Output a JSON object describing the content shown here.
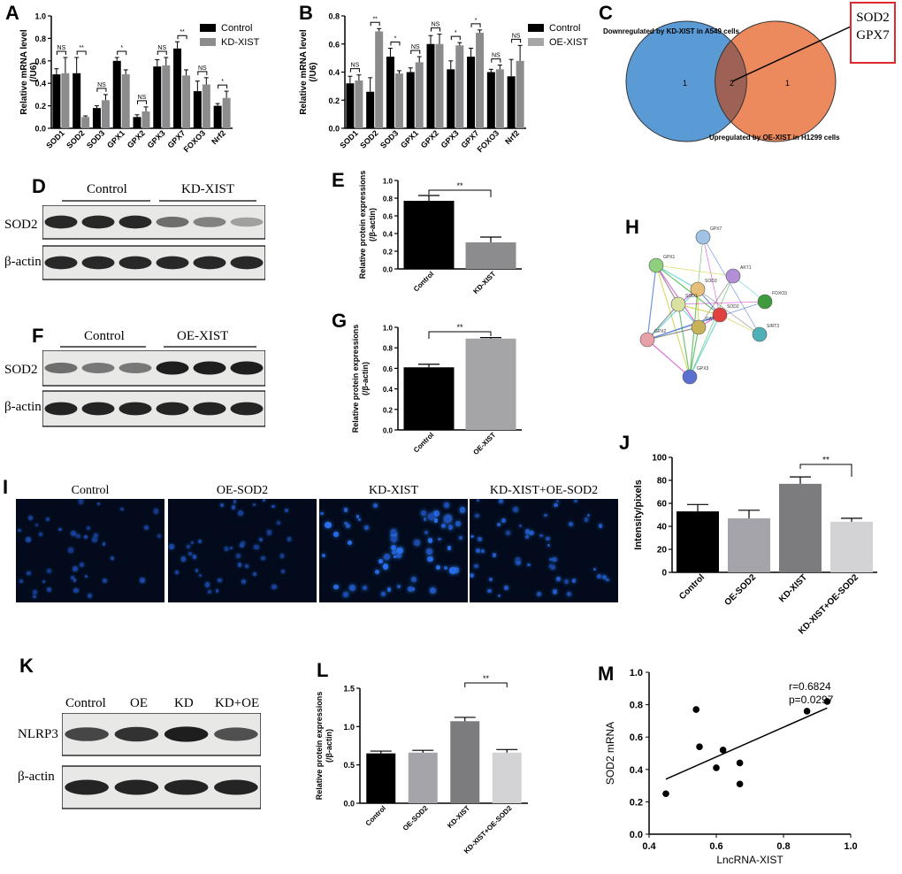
{
  "figure": {
    "panel_letters": [
      "A",
      "B",
      "C",
      "D",
      "E",
      "F",
      "G",
      "H",
      "I",
      "J",
      "K",
      "L",
      "M"
    ],
    "colors": {
      "control": "#000000",
      "kd": "#8c8c8f",
      "oe": "#a5a5a8",
      "blue_circle": "#5b9bd5",
      "orange_circle": "#ec8a5d",
      "box_red": "#e0282f"
    }
  },
  "chart_data": [
    {
      "id": "A",
      "type": "bar",
      "ylabel": "Relative mRNA level (/U6)",
      "ylim": [
        0,
        1.0
      ],
      "yticks": [
        "0.0",
        "0.2",
        "0.4",
        "0.6",
        "0.8",
        "1.0"
      ],
      "categories": [
        "SOD1",
        "SOD2",
        "SOD3",
        "GPX1",
        "GPX2",
        "GPX3",
        "GPX7",
        "FOXO3",
        "Nrf2"
      ],
      "series": [
        {
          "name": "Control",
          "values": [
            0.48,
            0.49,
            0.18,
            0.6,
            0.1,
            0.55,
            0.71,
            0.33,
            0.2
          ],
          "errors": [
            0.05,
            0.14,
            0.02,
            0.03,
            0.02,
            0.06,
            0.06,
            0.09,
            0.02
          ]
        },
        {
          "name": "KD-XIST",
          "values": [
            0.49,
            0.1,
            0.25,
            0.48,
            0.15,
            0.56,
            0.47,
            0.39,
            0.27
          ],
          "errors": [
            0.14,
            0.01,
            0.05,
            0.04,
            0.04,
            0.07,
            0.05,
            0.06,
            0.06
          ]
        }
      ],
      "significance": [
        "NS",
        "**",
        "NS",
        "*",
        "NS",
        "NS",
        "**",
        "NS",
        "*"
      ]
    },
    {
      "id": "B",
      "type": "bar",
      "ylabel": "Relative mRNA level (/U6)",
      "ylim": [
        0,
        0.8
      ],
      "yticks": [
        "0.0",
        "0.2",
        "0.4",
        "0.6",
        "0.8"
      ],
      "categories": [
        "SOD1",
        "SOD2",
        "SOD3",
        "GPX1",
        "GPX2",
        "GPX3",
        "GPX7",
        "FOXO3",
        "Nrf2"
      ],
      "series": [
        {
          "name": "Control",
          "values": [
            0.32,
            0.26,
            0.51,
            0.4,
            0.6,
            0.42,
            0.51,
            0.4,
            0.37
          ],
          "errors": [
            0.05,
            0.1,
            0.06,
            0.03,
            0.06,
            0.06,
            0.06,
            0.02,
            0.12
          ]
        },
        {
          "name": "OE-XIST",
          "values": [
            0.34,
            0.69,
            0.39,
            0.47,
            0.6,
            0.59,
            0.68,
            0.42,
            0.48
          ],
          "errors": [
            0.04,
            0.02,
            0.02,
            0.04,
            0.07,
            0.02,
            0.02,
            0.03,
            0.11
          ]
        }
      ],
      "significance": [
        "NS",
        "**",
        "*",
        "NS",
        "NS",
        "*",
        "*",
        "NS",
        "NS"
      ]
    },
    {
      "id": "E",
      "type": "bar",
      "ylabel": "Relative protein expressions (/β-actin)",
      "ylim": [
        0,
        1.0
      ],
      "yticks": [
        "0.0",
        "0.2",
        "0.4",
        "0.6",
        "0.8",
        "1.0"
      ],
      "categories": [
        "Control",
        "KD-XIST"
      ],
      "values": [
        0.77,
        0.3
      ],
      "errors": [
        0.06,
        0.06
      ],
      "significance": "**"
    },
    {
      "id": "G",
      "type": "bar",
      "ylabel": "Relative protein expressions (/β-actin)",
      "ylim": [
        0,
        1.0
      ],
      "yticks": [
        "0.0",
        "0.2",
        "0.4",
        "0.6",
        "0.8",
        "1.0"
      ],
      "categories": [
        "Control",
        "OE-XIST"
      ],
      "values": [
        0.61,
        0.89
      ],
      "errors": [
        0.03,
        0.01
      ],
      "significance": "**"
    },
    {
      "id": "J",
      "type": "bar",
      "ylabel": "Intensity/pixels",
      "ylim": [
        0,
        100
      ],
      "yticks": [
        "0",
        "20",
        "40",
        "60",
        "80",
        "100"
      ],
      "categories": [
        "Control",
        "OE-SOD2",
        "KD-XIST",
        "KD-XIST+OE-SOD2"
      ],
      "values": [
        53,
        47,
        77,
        44
      ],
      "errors": [
        6,
        7,
        6,
        3
      ],
      "significance": "**"
    },
    {
      "id": "L",
      "type": "bar",
      "ylabel": "Relative protein expressions (/β-actin)",
      "ylim": [
        0,
        1.5
      ],
      "yticks": [
        "0.0",
        "0.5",
        "1.0",
        "1.5"
      ],
      "categories": [
        "Control",
        "OE-SOD2",
        "KD-XIST",
        "KD-XIST+OE-SOD2"
      ],
      "values": [
        0.65,
        0.66,
        1.07,
        0.66
      ],
      "errors": [
        0.03,
        0.03,
        0.05,
        0.04
      ],
      "significance": "**"
    },
    {
      "id": "M",
      "type": "scatter",
      "xlabel": "LncRNA-XIST",
      "ylabel": "SOD2 mRNA",
      "xlim": [
        0.4,
        1.0
      ],
      "ylim": [
        0.0,
        1.0
      ],
      "xticks": [
        "0.4",
        "0.6",
        "0.8",
        "1.0"
      ],
      "yticks": [
        "0.0",
        "0.2",
        "0.4",
        "0.6",
        "0.8",
        "1.0"
      ],
      "x": [
        0.45,
        0.54,
        0.55,
        0.6,
        0.62,
        0.67,
        0.67,
        0.87,
        0.93
      ],
      "y": [
        0.25,
        0.77,
        0.54,
        0.41,
        0.52,
        0.44,
        0.31,
        0.76,
        0.82
      ],
      "fit": {
        "x": [
          0.45,
          0.93
        ],
        "y": [
          0.34,
          0.78
        ]
      },
      "annotation": [
        "r=0.6824",
        "p=0.0297"
      ]
    }
  ],
  "venn": {
    "left_label": "Downregulated by KD-XIST in A549 cells",
    "right_label": "Upregulated by OE-XIST in H1299 cells",
    "left_only": "1",
    "overlap": "2",
    "right_only": "1",
    "genes": [
      "SOD2",
      "GPX7"
    ]
  },
  "blots": {
    "D": {
      "groups": [
        "Control",
        "KD-XIST"
      ],
      "rows": [
        "SOD2",
        "β-actin"
      ],
      "sod2_intensity": [
        0.9,
        0.9,
        0.9,
        0.55,
        0.45,
        0.3
      ]
    },
    "F": {
      "groups": [
        "Control",
        "OE-XIST"
      ],
      "rows": [
        "SOD2",
        "β-actin"
      ],
      "sod2_intensity": [
        0.55,
        0.5,
        0.5,
        0.95,
        0.95,
        0.95
      ]
    },
    "K": {
      "columns": [
        "Control",
        "OE",
        "KD",
        "KD+OE"
      ],
      "rows": [
        "NLRP3",
        "β-actin"
      ],
      "nlrp3_intensity": [
        0.75,
        0.85,
        0.95,
        0.7
      ]
    }
  },
  "network": {
    "nodes": [
      "GPX7",
      "GPX1",
      "AKT1",
      "SOD3",
      "FOXO3",
      "SOD1",
      "SOD2",
      "CAT",
      "GPX2",
      "SIRT3",
      "GPX3"
    ]
  },
  "microscopy": {
    "titles": [
      "Control",
      "OE-SOD2",
      "KD-XIST",
      "KD-XIST+OE-SOD2"
    ],
    "cell_density": [
      38,
      40,
      60,
      50
    ],
    "brightness": [
      0.45,
      0.5,
      0.95,
      0.7
    ]
  }
}
